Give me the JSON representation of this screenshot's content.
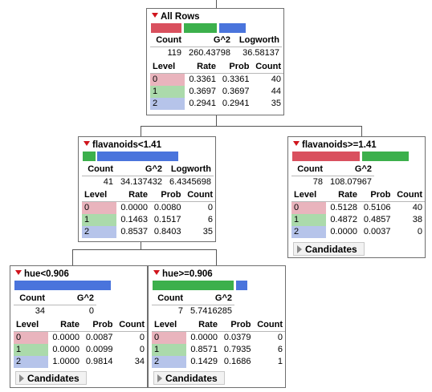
{
  "nodes": {
    "root": {
      "title": "All Rows",
      "stats_header": [
        "Count",
        "G^2",
        "Logworth"
      ],
      "stats_values": [
        "119",
        "260.43798",
        "36.58137"
      ],
      "level_header": [
        "Level",
        "Rate",
        "Prob",
        "Count"
      ],
      "levels": [
        {
          "level": "0",
          "rate": "0.3361",
          "prob": "0.3361",
          "count": "40"
        },
        {
          "level": "1",
          "rate": "0.3697",
          "prob": "0.3697",
          "count": "44"
        },
        {
          "level": "2",
          "rate": "0.2941",
          "prob": "0.2941",
          "count": "35"
        }
      ]
    },
    "flav_lt": {
      "title": "flavanoids<1.41",
      "stats_header": [
        "Count",
        "G^2",
        "Logworth"
      ],
      "stats_values": [
        "41",
        "34.137432",
        "6.4345698"
      ],
      "level_header": [
        "Level",
        "Rate",
        "Prob",
        "Count"
      ],
      "levels": [
        {
          "level": "0",
          "rate": "0.0000",
          "prob": "0.0080",
          "count": "0"
        },
        {
          "level": "1",
          "rate": "0.1463",
          "prob": "0.1517",
          "count": "6"
        },
        {
          "level": "2",
          "rate": "0.8537",
          "prob": "0.8403",
          "count": "35"
        }
      ]
    },
    "flav_ge": {
      "title": "flavanoids>=1.41",
      "stats_header": [
        "Count",
        "G^2"
      ],
      "stats_values": [
        "78",
        "108.07967"
      ],
      "level_header": [
        "Level",
        "Rate",
        "Prob",
        "Count"
      ],
      "levels": [
        {
          "level": "0",
          "rate": "0.5128",
          "prob": "0.5106",
          "count": "40"
        },
        {
          "level": "1",
          "rate": "0.4872",
          "prob": "0.4857",
          "count": "38"
        },
        {
          "level": "2",
          "rate": "0.0000",
          "prob": "0.0037",
          "count": "0"
        }
      ],
      "candidates_label": "Candidates"
    },
    "hue_lt": {
      "title": "hue<0.906",
      "stats_header": [
        "Count",
        "G^2"
      ],
      "stats_values": [
        "34",
        "0"
      ],
      "level_header": [
        "Level",
        "Rate",
        "Prob",
        "Count"
      ],
      "levels": [
        {
          "level": "0",
          "rate": "0.0000",
          "prob": "0.0087",
          "count": "0"
        },
        {
          "level": "1",
          "rate": "0.0000",
          "prob": "0.0099",
          "count": "0"
        },
        {
          "level": "2",
          "rate": "1.0000",
          "prob": "0.9814",
          "count": "34"
        }
      ],
      "candidates_label": "Candidates"
    },
    "hue_ge": {
      "title": "hue>=0.906",
      "stats_header": [
        "Count",
        "G^2"
      ],
      "stats_values": [
        "7",
        "5.7416285"
      ],
      "level_header": [
        "Level",
        "Rate",
        "Prob",
        "Count"
      ],
      "levels": [
        {
          "level": "0",
          "rate": "0.0000",
          "prob": "0.0379",
          "count": "0"
        },
        {
          "level": "1",
          "rate": "0.8571",
          "prob": "0.7935",
          "count": "6"
        },
        {
          "level": "2",
          "rate": "0.1429",
          "prob": "0.1686",
          "count": "1"
        }
      ],
      "candidates_label": "Candidates"
    }
  },
  "colors": {
    "level0": "#d9505e",
    "level1": "#3cb04c",
    "level2": "#4a74dc"
  }
}
